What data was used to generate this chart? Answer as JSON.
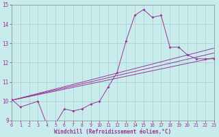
{
  "xlabel": "Windchill (Refroidissement éolien,°C)",
  "xlim": [
    0,
    23
  ],
  "ylim": [
    9,
    15
  ],
  "yticks": [
    9,
    10,
    11,
    12,
    13,
    14,
    15
  ],
  "xticks": [
    0,
    1,
    2,
    3,
    4,
    5,
    6,
    7,
    8,
    9,
    10,
    11,
    12,
    13,
    14,
    15,
    16,
    17,
    18,
    19,
    20,
    21,
    22,
    23
  ],
  "bg_color": "#c8ecec",
  "line_color": "#993399",
  "grid_color": "#aacccc",
  "line1_x": [
    0,
    1,
    3,
    4,
    5,
    6,
    7,
    8,
    9,
    10,
    11,
    12,
    13,
    14,
    15,
    16,
    17,
    18,
    19,
    20,
    21,
    22,
    23
  ],
  "line1_y": [
    10.1,
    9.7,
    10.0,
    8.8,
    8.85,
    9.6,
    9.5,
    9.6,
    9.85,
    10.0,
    10.75,
    11.5,
    13.1,
    14.45,
    14.75,
    14.35,
    14.45,
    12.8,
    12.8,
    12.4,
    12.2,
    12.2,
    12.2
  ],
  "line2_x": [
    0,
    23
  ],
  "line2_y": [
    10.05,
    12.25
  ],
  "line3_x": [
    0,
    23
  ],
  "line3_y": [
    10.05,
    12.75
  ],
  "line4_x": [
    0,
    23
  ],
  "line4_y": [
    10.05,
    12.5
  ]
}
